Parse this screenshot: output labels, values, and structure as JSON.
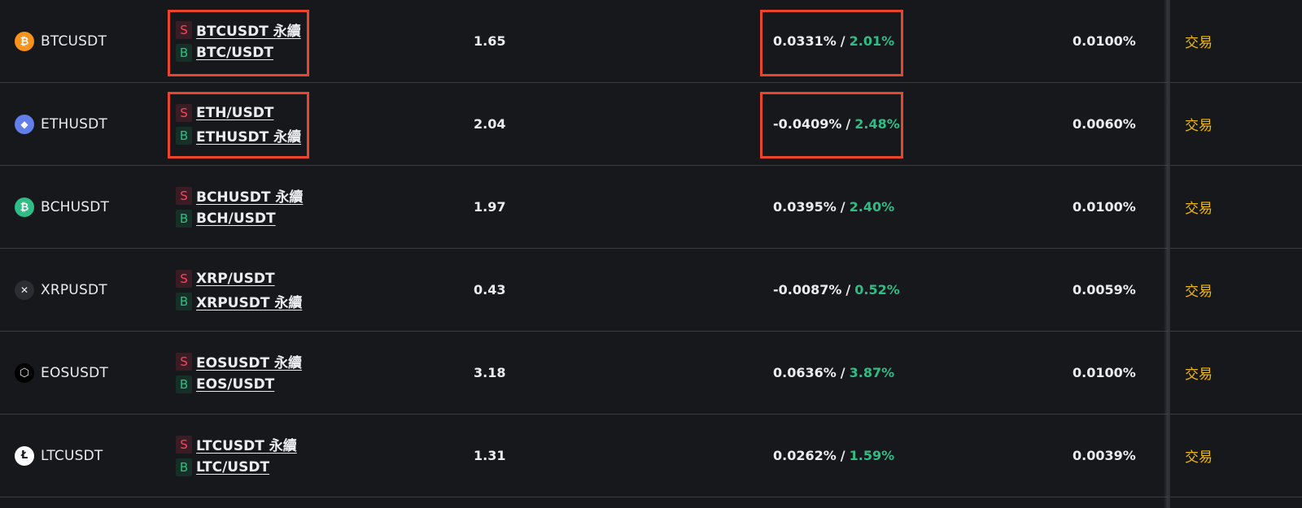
{
  "rows": [
    {
      "coin": "BTCUSDT",
      "icon": "bitcoin-icon",
      "icon_glyph": "₿",
      "icon_color": "#f7931a",
      "pairs": [
        {
          "side": "S",
          "label": "BTCUSDT 永續"
        },
        {
          "side": "B",
          "label": "BTC/USDT"
        }
      ],
      "ratio": "1.65",
      "rate_a": "0.0331%",
      "rate_b": "2.01%",
      "fee": "0.0100%",
      "trade": "交易"
    },
    {
      "coin": "ETHUSDT",
      "icon": "ethereum-icon",
      "icon_glyph": "◆",
      "icon_color": "#627eea",
      "pairs": [
        {
          "side": "S",
          "label": "ETH/USDT"
        },
        {
          "side": "B",
          "label": "ETHUSDT 永續"
        }
      ],
      "ratio": "2.04",
      "rate_a": "-0.0409%",
      "rate_b": "2.48%",
      "fee": "0.0060%",
      "trade": "交易"
    },
    {
      "coin": "BCHUSDT",
      "icon": "bitcoin-cash-icon",
      "icon_glyph": "₿",
      "icon_color": "#2ebd85",
      "pairs": [
        {
          "side": "S",
          "label": "BCHUSDT 永續"
        },
        {
          "side": "B",
          "label": "BCH/USDT"
        }
      ],
      "ratio": "1.97",
      "rate_a": "0.0395%",
      "rate_b": "2.40%",
      "fee": "0.0100%",
      "trade": "交易"
    },
    {
      "coin": "XRPUSDT",
      "icon": "xrp-icon",
      "icon_glyph": "✕",
      "icon_color": "#2b2d33",
      "pairs": [
        {
          "side": "S",
          "label": "XRP/USDT"
        },
        {
          "side": "B",
          "label": "XRPUSDT 永續"
        }
      ],
      "ratio": "0.43",
      "rate_a": "-0.0087%",
      "rate_b": "0.52%",
      "fee": "0.0059%",
      "trade": "交易"
    },
    {
      "coin": "EOSUSDT",
      "icon": "eos-icon",
      "icon_glyph": "⬡",
      "icon_color": "#000000",
      "pairs": [
        {
          "side": "S",
          "label": "EOSUSDT 永續"
        },
        {
          "side": "B",
          "label": "EOS/USDT"
        }
      ],
      "ratio": "3.18",
      "rate_a": "0.0636%",
      "rate_b": "3.87%",
      "fee": "0.0100%",
      "trade": "交易"
    },
    {
      "coin": "LTCUSDT",
      "icon": "litecoin-icon",
      "icon_glyph": "Ł",
      "icon_color": "#ffffff",
      "pairs": [
        {
          "side": "S",
          "label": "LTCUSDT 永續"
        },
        {
          "side": "B",
          "label": "LTC/USDT"
        }
      ],
      "ratio": "1.31",
      "rate_a": "0.0262%",
      "rate_b": "1.59%",
      "fee": "0.0039%",
      "trade": "交易"
    }
  ],
  "colors": {
    "background": "#17181c",
    "sell": "#f6465d",
    "buy": "#2ebd85",
    "accent": "#f0b90b",
    "highlight": "#e8452c"
  }
}
